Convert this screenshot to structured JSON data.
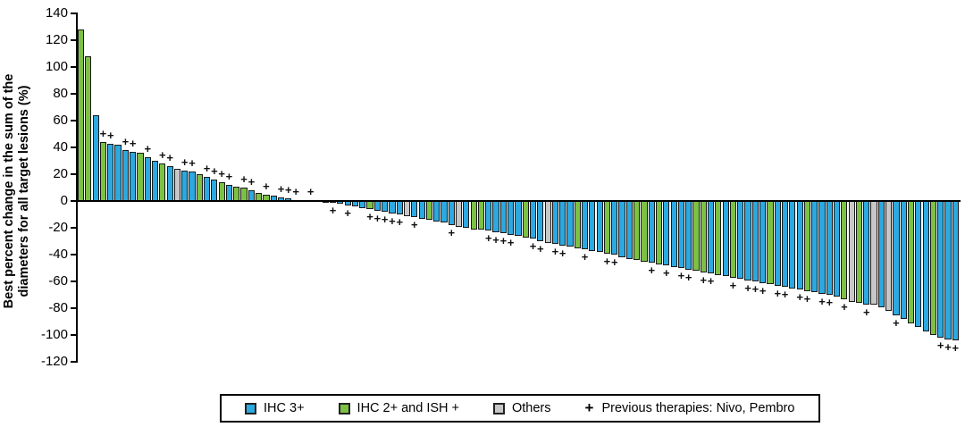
{
  "figure": {
    "ylabel_line1": "Best percent change in the sum of the",
    "ylabel_line2": "diameters for all target lesions (%)"
  },
  "legend": {
    "items": [
      {
        "label": "IHC 3+",
        "color_key": "b"
      },
      {
        "label": "IHC 2+ and ISH +",
        "color_key": "g"
      },
      {
        "label": "Others",
        "color_key": "o"
      }
    ],
    "plus_symbol": "+",
    "plus_label": "Previous therapies: Nivo, Pembro"
  },
  "chart_data": {
    "type": "bar",
    "subtype": "waterfall",
    "title": "",
    "xlabel": "",
    "ylabel": "Best percent change in the sum of the diameters for all target lesions (%)",
    "ylim": [
      -120,
      140
    ],
    "yticks": [
      140,
      120,
      100,
      80,
      60,
      40,
      20,
      0,
      -20,
      -40,
      -60,
      -80,
      -100,
      -120
    ],
    "grid": false,
    "legend_position": "bottom",
    "colors": {
      "b": "#2BA9E0",
      "g": "#7CC143",
      "o": "#C7C7C7"
    },
    "color_meaning": {
      "b": "IHC 3+",
      "g": "IHC 2+ and ISH +",
      "o": "Others"
    },
    "marker_meaning": "Previous therapies: Nivo, Pembro",
    "bars_format": "[best_percent_change, color_key, previous_therapy_plus]",
    "bars": [
      [
        128,
        "g",
        0
      ],
      [
        108,
        "g",
        0
      ],
      [
        64,
        "b",
        0
      ],
      [
        44,
        "g",
        1
      ],
      [
        43,
        "b",
        1
      ],
      [
        42,
        "b",
        0
      ],
      [
        38,
        "b",
        1
      ],
      [
        37,
        "b",
        1
      ],
      [
        36,
        "g",
        0
      ],
      [
        33,
        "b",
        1
      ],
      [
        30,
        "b",
        0
      ],
      [
        28,
        "g",
        1
      ],
      [
        26,
        "b",
        1
      ],
      [
        24,
        "o",
        0
      ],
      [
        23,
        "b",
        1
      ],
      [
        22,
        "b",
        1
      ],
      [
        20,
        "g",
        0
      ],
      [
        18,
        "b",
        1
      ],
      [
        16,
        "b",
        1
      ],
      [
        14,
        "g",
        1
      ],
      [
        12,
        "b",
        1
      ],
      [
        11,
        "g",
        0
      ],
      [
        10,
        "g",
        1
      ],
      [
        8,
        "b",
        1
      ],
      [
        6,
        "g",
        0
      ],
      [
        5,
        "g",
        1
      ],
      [
        4,
        "b",
        0
      ],
      [
        3,
        "b",
        1
      ],
      [
        2,
        "b",
        1
      ],
      [
        1,
        "b",
        1
      ],
      [
        1,
        "g",
        0
      ],
      [
        0.5,
        "b",
        1
      ],
      [
        0.5,
        "b",
        0
      ],
      [
        -1,
        "b",
        0
      ],
      [
        -1,
        "g",
        1
      ],
      [
        -2,
        "b",
        0
      ],
      [
        -3,
        "b",
        1
      ],
      [
        -4,
        "b",
        0
      ],
      [
        -5,
        "b",
        0
      ],
      [
        -6,
        "g",
        1
      ],
      [
        -7,
        "b",
        1
      ],
      [
        -8,
        "b",
        1
      ],
      [
        -9,
        "b",
        1
      ],
      [
        -10,
        "b",
        1
      ],
      [
        -11,
        "o",
        0
      ],
      [
        -12,
        "b",
        1
      ],
      [
        -13,
        "b",
        0
      ],
      [
        -14,
        "g",
        0
      ],
      [
        -15,
        "b",
        0
      ],
      [
        -16,
        "b",
        0
      ],
      [
        -18,
        "b",
        1
      ],
      [
        -19,
        "o",
        0
      ],
      [
        -20,
        "b",
        0
      ],
      [
        -21,
        "g",
        0
      ],
      [
        -21,
        "g",
        0
      ],
      [
        -22,
        "b",
        1
      ],
      [
        -23,
        "b",
        1
      ],
      [
        -24,
        "b",
        1
      ],
      [
        -25,
        "b",
        1
      ],
      [
        -26,
        "b",
        0
      ],
      [
        -27,
        "g",
        0
      ],
      [
        -28,
        "b",
        1
      ],
      [
        -30,
        "b",
        1
      ],
      [
        -31,
        "o",
        0
      ],
      [
        -32,
        "b",
        1
      ],
      [
        -33,
        "b",
        1
      ],
      [
        -34,
        "b",
        0
      ],
      [
        -35,
        "g",
        0
      ],
      [
        -36,
        "b",
        1
      ],
      [
        -37,
        "b",
        0
      ],
      [
        -38,
        "b",
        0
      ],
      [
        -39,
        "g",
        1
      ],
      [
        -40,
        "b",
        1
      ],
      [
        -42,
        "b",
        0
      ],
      [
        -43,
        "b",
        0
      ],
      [
        -44,
        "g",
        0
      ],
      [
        -45,
        "g",
        0
      ],
      [
        -46,
        "b",
        1
      ],
      [
        -47,
        "g",
        0
      ],
      [
        -48,
        "b",
        1
      ],
      [
        -49,
        "b",
        0
      ],
      [
        -50,
        "b",
        1
      ],
      [
        -51,
        "b",
        1
      ],
      [
        -52,
        "g",
        0
      ],
      [
        -53,
        "g",
        1
      ],
      [
        -54,
        "b",
        1
      ],
      [
        -55,
        "g",
        0
      ],
      [
        -56,
        "b",
        0
      ],
      [
        -57,
        "g",
        1
      ],
      [
        -58,
        "b",
        0
      ],
      [
        -59,
        "b",
        1
      ],
      [
        -60,
        "b",
        1
      ],
      [
        -61,
        "b",
        1
      ],
      [
        -62,
        "g",
        0
      ],
      [
        -63,
        "b",
        1
      ],
      [
        -64,
        "b",
        1
      ],
      [
        -65,
        "b",
        0
      ],
      [
        -66,
        "b",
        1
      ],
      [
        -67,
        "g",
        1
      ],
      [
        -68,
        "b",
        0
      ],
      [
        -69,
        "b",
        1
      ],
      [
        -70,
        "b",
        1
      ],
      [
        -71,
        "b",
        0
      ],
      [
        -73,
        "g",
        1
      ],
      [
        -75,
        "o",
        0
      ],
      [
        -76,
        "g",
        0
      ],
      [
        -77,
        "b",
        1
      ],
      [
        -77,
        "o",
        0
      ],
      [
        -79,
        "b",
        0
      ],
      [
        -82,
        "o",
        0
      ],
      [
        -85,
        "b",
        1
      ],
      [
        -88,
        "b",
        0
      ],
      [
        -91,
        "g",
        0
      ],
      [
        -94,
        "b",
        0
      ],
      [
        -97,
        "b",
        0
      ],
      [
        -100,
        "g",
        0
      ],
      [
        -102,
        "b",
        1
      ],
      [
        -103,
        "b",
        1
      ],
      [
        -104,
        "b",
        1
      ]
    ]
  }
}
